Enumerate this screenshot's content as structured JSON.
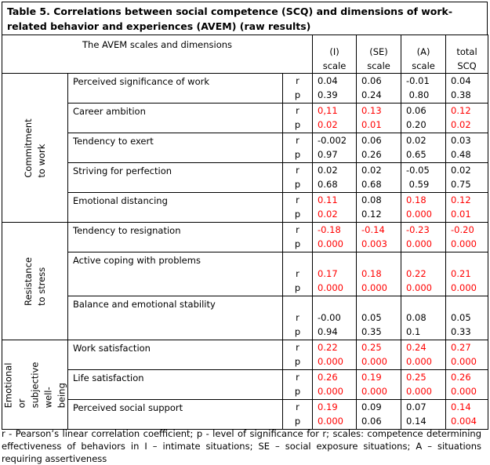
{
  "title": "Table 5. Correlations between social competence (SCQ) and dimensions of work-related behavior and experiences (AVEM) (raw results)",
  "header": {
    "dimension_label": "The AVEM scales and dimensions",
    "columns": [
      "(I)\nscale",
      "(SE)\nscale",
      "(A)\nscale",
      "total\nSCQ"
    ]
  },
  "labels": {
    "r": "r",
    "p": "p"
  },
  "colors": {
    "significant": "#ff0000",
    "default": "#000000"
  },
  "groups": [
    {
      "name": "Commitment to work",
      "rows": [
        {
          "name": "Perceived significance of work",
          "r": [
            [
              "0.04",
              0
            ],
            [
              "0.06",
              0
            ],
            [
              "-0.01",
              0
            ],
            [
              "0.04",
              0
            ]
          ],
          "p": [
            [
              "0.39",
              0
            ],
            [
              "0.24",
              0
            ],
            [
              " 0.80",
              0
            ],
            [
              "0.38",
              0
            ]
          ]
        },
        {
          "name": "Career ambition",
          "r": [
            [
              "0,11",
              1
            ],
            [
              "0.13",
              1
            ],
            [
              "0.06",
              0
            ],
            [
              "0.12",
              1
            ]
          ],
          "p": [
            [
              "0.02",
              1
            ],
            [
              "0.01",
              1
            ],
            [
              "0.20",
              0
            ],
            [
              "0.02",
              1
            ]
          ]
        },
        {
          "name": "Tendency to exert",
          "r": [
            [
              "-0.002",
              0
            ],
            [
              "0.06",
              0
            ],
            [
              "0.02",
              0
            ],
            [
              "0.03",
              0
            ]
          ],
          "p": [
            [
              "0.97",
              0
            ],
            [
              "0.26",
              0
            ],
            [
              "0.65",
              0
            ],
            [
              "0.48",
              0
            ]
          ]
        },
        {
          "name": "Striving for perfection",
          "r": [
            [
              "0.02",
              0
            ],
            [
              "0.02",
              0
            ],
            [
              "-0.05",
              0
            ],
            [
              "0.02",
              0
            ]
          ],
          "p": [
            [
              "0.68",
              0
            ],
            [
              "0.68",
              0
            ],
            [
              " 0.59",
              0
            ],
            [
              "0.75",
              0
            ]
          ]
        },
        {
          "name": "Emotional distancing",
          "r": [
            [
              "0.11",
              1
            ],
            [
              "0.08",
              0
            ],
            [
              "0.18",
              1
            ],
            [
              "0.12",
              1
            ]
          ],
          "p": [
            [
              "0.02",
              1
            ],
            [
              "0.12",
              0
            ],
            [
              "0.000",
              1
            ],
            [
              "0.01",
              1
            ]
          ]
        }
      ]
    },
    {
      "name": "Resistance to stress",
      "rows": [
        {
          "name": "Tendency to resignation",
          "r": [
            [
              "-0.18",
              1
            ],
            [
              "-0.14",
              1
            ],
            [
              "-0.23",
              1
            ],
            [
              "-0.20",
              1
            ]
          ],
          "p": [
            [
              "0.000",
              1
            ],
            [
              "0.003",
              1
            ],
            [
              "0.000",
              1
            ],
            [
              "0.000",
              1
            ]
          ]
        },
        {
          "name": "Active coping with problems",
          "tall": true,
          "r": [
            [
              "0.17",
              1
            ],
            [
              "0.18",
              1
            ],
            [
              "0.22",
              1
            ],
            [
              "0.21",
              1
            ]
          ],
          "p": [
            [
              "0.000",
              1
            ],
            [
              "0.000",
              1
            ],
            [
              "0.000",
              1
            ],
            [
              "0.000",
              1
            ]
          ]
        },
        {
          "name": "Balance and emotional stability",
          "tall": true,
          "r": [
            [
              "-0.00",
              0
            ],
            [
              "0.05",
              0
            ],
            [
              "0.08",
              0
            ],
            [
              "0.05",
              0
            ]
          ],
          "p": [
            [
              "0.94",
              0
            ],
            [
              "0.35",
              0
            ],
            [
              "0.1",
              0
            ],
            [
              "0.33",
              0
            ]
          ]
        }
      ]
    },
    {
      "name": "Emotional or\nsubjective well-\nbeing",
      "rows": [
        {
          "name": "Work satisfaction",
          "r": [
            [
              "0.22",
              1
            ],
            [
              "0.25",
              1
            ],
            [
              "0.24",
              1
            ],
            [
              "0.27",
              1
            ]
          ],
          "p": [
            [
              "0.000",
              1
            ],
            [
              "0.000",
              1
            ],
            [
              "0.000",
              1
            ],
            [
              "0.000",
              1
            ]
          ]
        },
        {
          "name": "Life satisfaction",
          "r": [
            [
              "0.26",
              1
            ],
            [
              "0.19",
              1
            ],
            [
              "0.25",
              1
            ],
            [
              "0.26",
              1
            ]
          ],
          "p": [
            [
              "0.000",
              1
            ],
            [
              "0.000",
              1
            ],
            [
              "0.000",
              1
            ],
            [
              "0.000",
              1
            ]
          ]
        },
        {
          "name": "Perceived social support",
          "r": [
            [
              "0.19",
              1
            ],
            [
              "0.09",
              0
            ],
            [
              "0.07",
              0
            ],
            [
              "0.14",
              1
            ]
          ],
          "p": [
            [
              "0.000",
              1
            ],
            [
              "0.06",
              0
            ],
            [
              "0.14",
              0
            ],
            [
              "0.004",
              1
            ]
          ]
        }
      ]
    }
  ],
  "footnote": "r - Pearson’s linear correlation coefficient; p - level of significance for r; scales: competence determining effectiveness of behaviors in I – intimate situations; SE – social exposure situations; A – situations requiring assertiveness"
}
